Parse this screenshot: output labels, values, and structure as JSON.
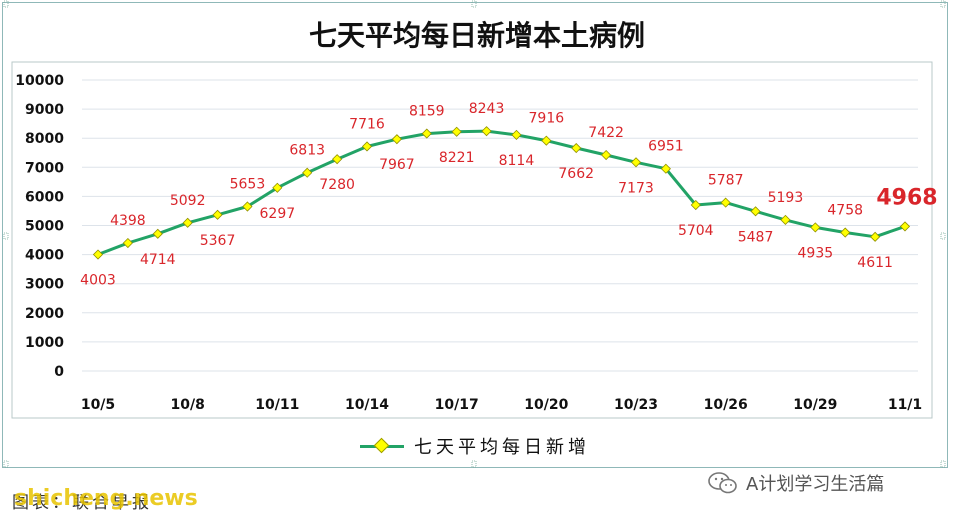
{
  "chart_data": {
    "type": "line",
    "title": "七天平均每日新增本土病例",
    "categories": [
      "10/5",
      "10/6",
      "10/7",
      "10/8",
      "10/9",
      "10/10",
      "10/11",
      "10/12",
      "10/13",
      "10/14",
      "10/15",
      "10/16",
      "10/17",
      "10/18",
      "10/19",
      "10/20",
      "10/21",
      "10/22",
      "10/23",
      "10/24",
      "10/25",
      "10/26",
      "10/27",
      "10/28",
      "10/29",
      "10/30",
      "10/31",
      "11/1"
    ],
    "x_tick_labels": [
      "10/5",
      "10/8",
      "10/11",
      "10/14",
      "10/17",
      "10/20",
      "10/23",
      "10/26",
      "10/29",
      "11/1"
    ],
    "series": [
      {
        "name": "七天平均每日新增",
        "values": [
          4003,
          4398,
          4714,
          5092,
          5367,
          5653,
          6297,
          6813,
          7280,
          7716,
          7967,
          8159,
          8221,
          8243,
          8114,
          7916,
          7662,
          7422,
          7173,
          6951,
          5704,
          5787,
          5487,
          5193,
          4935,
          4758,
          4611,
          4968
        ]
      }
    ],
    "ylim": [
      0,
      10000
    ],
    "y_ticks": [
      0,
      1000,
      2000,
      3000,
      4000,
      5000,
      6000,
      7000,
      8000,
      9000,
      10000
    ],
    "grid": "horizontal",
    "legend": "bottom",
    "xlabel": "",
    "ylabel": ""
  },
  "colors": {
    "line": "#22a366",
    "marker_fill": "#ffff00",
    "data_label": "#d9262b",
    "grid": "#dde3ea"
  },
  "source_text": "图表：联合早报",
  "watermark_text": "shicheng.news",
  "wechat_text": "A计划学习生活篇",
  "wechat_icon": "wechat-icon"
}
